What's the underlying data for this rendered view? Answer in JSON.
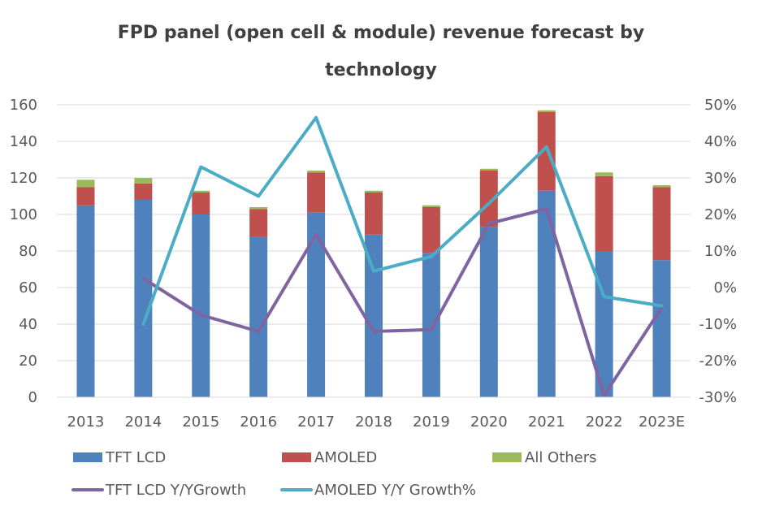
{
  "chart_data": {
    "type": "bar",
    "title_line1": "FPD panel (open cell & module) revenue forecast by",
    "title_line2": "technology",
    "categories": [
      "2013",
      "2014",
      "2015",
      "2016",
      "2017",
      "2018",
      "2019",
      "2020",
      "2021",
      "2022",
      "2023E"
    ],
    "y_left": {
      "ylim": [
        0,
        160
      ],
      "ticks": [
        "0",
        "20",
        "40",
        "60",
        "80",
        "100",
        "120",
        "140",
        "160"
      ]
    },
    "y_right": {
      "ylim": [
        -30,
        50
      ],
      "ticks": [
        "-30%",
        "-20%",
        "-10%",
        "0%",
        "10%",
        "20%",
        "30%",
        "40%",
        "50%"
      ]
    },
    "grid": true,
    "legend_position": "bottom",
    "series": [
      {
        "name": "TFT LCD",
        "kind": "bar",
        "axis": "left",
        "color": "#4f81bd",
        "values": [
          105,
          108,
          100,
          88,
          101,
          89,
          79,
          93,
          113,
          80,
          75
        ]
      },
      {
        "name": "AMOLED",
        "kind": "bar",
        "axis": "left",
        "color": "#c0504d",
        "values": [
          10,
          9,
          12,
          15,
          22,
          23,
          25,
          31,
          43,
          41,
          40
        ]
      },
      {
        "name": "All Others",
        "kind": "bar",
        "axis": "left",
        "color": "#9bbb59",
        "values": [
          4,
          3,
          1,
          1,
          1,
          1,
          1,
          1,
          1,
          2,
          1
        ]
      },
      {
        "name": "TFT LCD Y/YGrowth",
        "kind": "line",
        "axis": "right",
        "color": "#8064a2",
        "values": [
          null,
          2.5,
          -7.5,
          -12,
          14.5,
          -12,
          -11.5,
          17.5,
          21.5,
          -29.5,
          -5.5
        ]
      },
      {
        "name": "AMOLED Y/Y Growth%",
        "kind": "line",
        "axis": "right",
        "color": "#4bacc6",
        "values": [
          null,
          -10,
          33,
          25,
          46.5,
          4.5,
          8.5,
          23,
          38.5,
          -2.5,
          -5
        ]
      }
    ]
  }
}
